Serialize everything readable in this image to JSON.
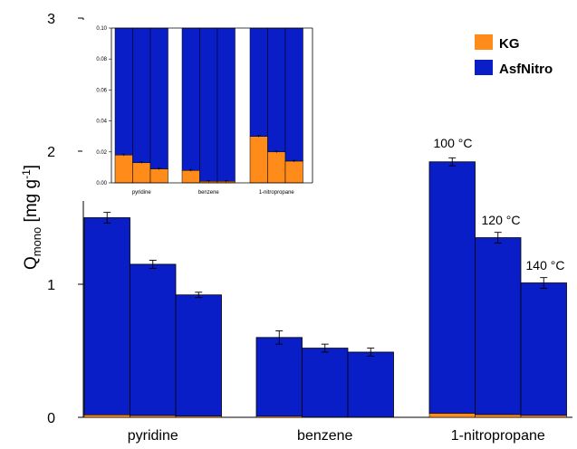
{
  "chart_data": [
    {
      "type": "bar",
      "stacked": true,
      "ylabel_base": "Q",
      "ylabel_sub": "mono",
      "ylabel_unit_pre": " [mg g",
      "ylabel_unit_sup": "-1",
      "ylabel_unit_post": "]",
      "ylim": [
        0,
        3
      ],
      "yticks": [
        0,
        1,
        2,
        3
      ],
      "categories": [
        "pyridine",
        "benzene",
        "1-nitropropane"
      ],
      "temperatures": [
        "100 °C",
        "120 °C",
        "140 °C"
      ],
      "annotations": [
        "100 °C",
        "120 °C",
        "140 °C"
      ],
      "series": [
        {
          "name": "KG",
          "color": "#ff8c1a",
          "values": [
            [
              0.018,
              0.013,
              0.009
            ],
            [
              0.008,
              0.001,
              0.001
            ],
            [
              0.03,
              0.02,
              0.014
            ]
          ]
        },
        {
          "name": "AsfNitro",
          "color": "#0a1ec8",
          "values": [
            [
              1.482,
              1.137,
              0.911
            ],
            [
              0.592,
              0.519,
              0.489
            ],
            [
              1.89,
              1.33,
              0.996
            ]
          ]
        }
      ],
      "totals": [
        [
          1.5,
          1.15,
          0.92
        ],
        [
          0.6,
          0.52,
          0.49
        ],
        [
          1.92,
          1.35,
          1.01
        ]
      ],
      "errors": [
        [
          0.04,
          0.03,
          0.02
        ],
        [
          0.05,
          0.03,
          0.03
        ],
        [
          0.03,
          0.04,
          0.04
        ]
      ],
      "legend_position": "top-right",
      "grid": false
    },
    {
      "type": "bar",
      "inset": true,
      "ylim": [
        0,
        0.1
      ],
      "yticks": [
        "0.00",
        "0.02",
        "0.04",
        "0.06",
        "0.08",
        "0.10"
      ],
      "categories": [
        "pyridine",
        "benzene",
        "1-nitropropane"
      ],
      "kg_values": [
        [
          0.018,
          0.013,
          0.009
        ],
        [
          0.008,
          0.001,
          0.001
        ],
        [
          0.03,
          0.02,
          0.014
        ]
      ],
      "colors": {
        "KG": "#ff8c1a",
        "AsfNitro": "#0a1ec8"
      }
    }
  ]
}
